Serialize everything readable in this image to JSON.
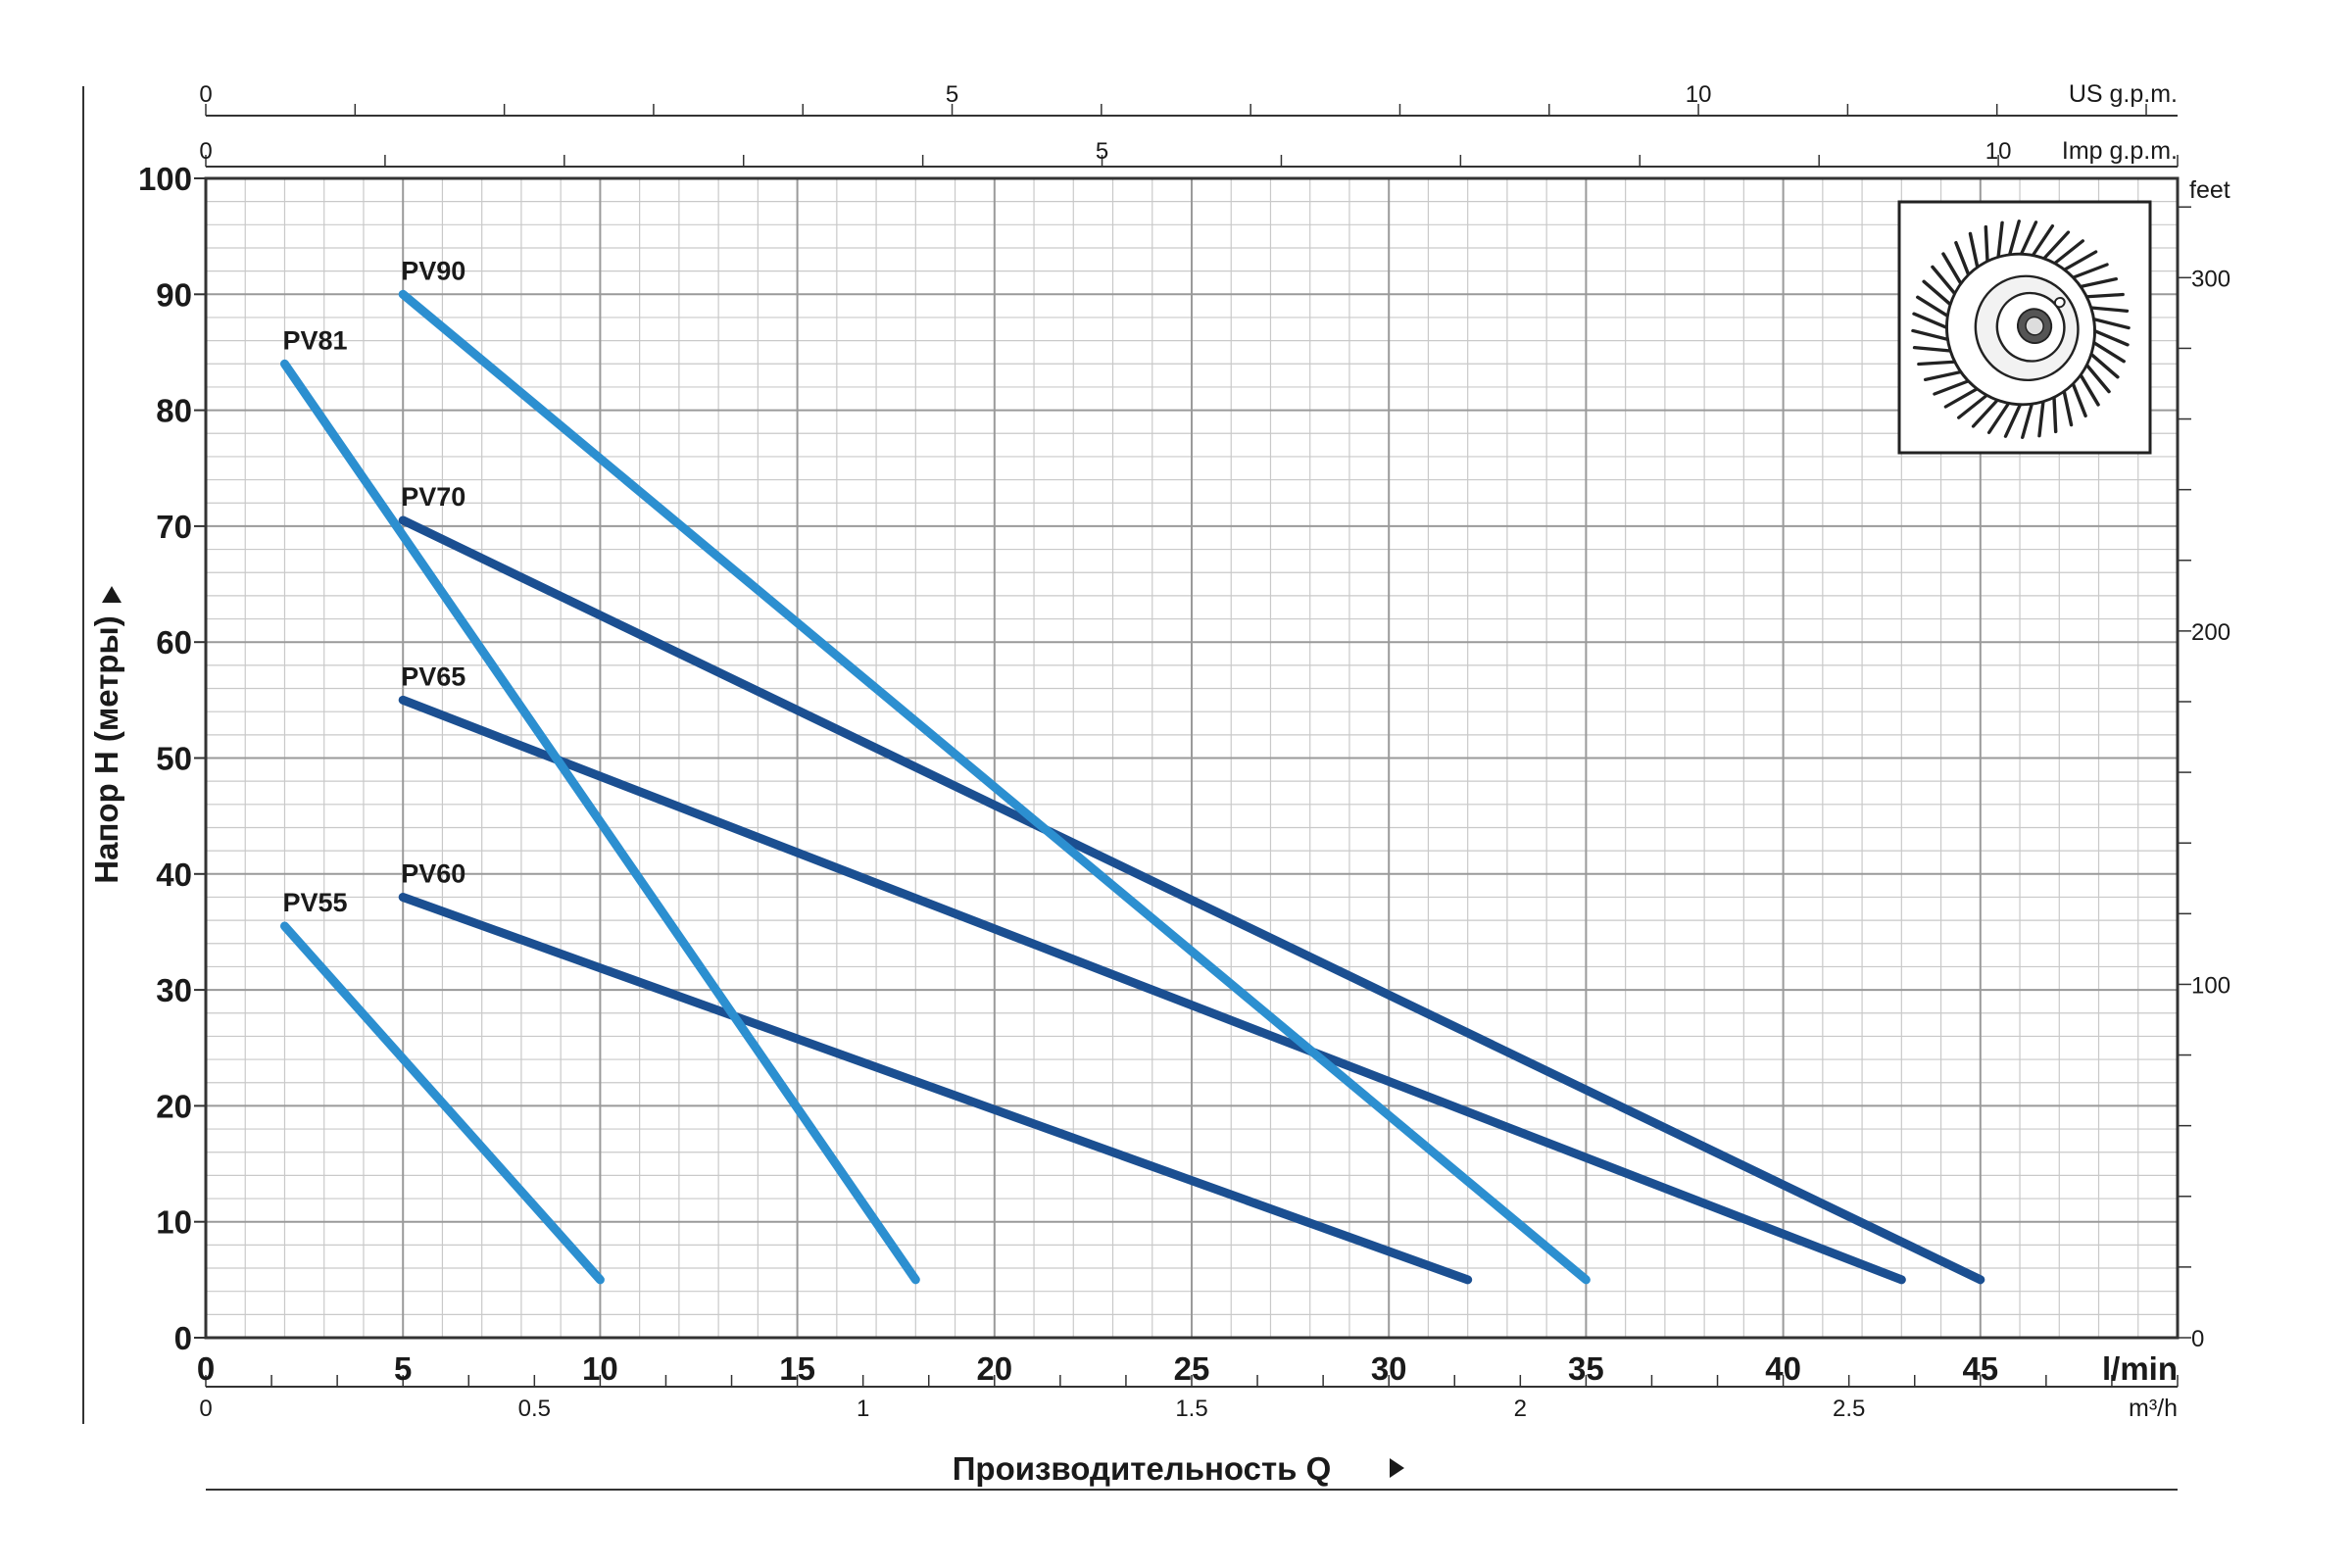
{
  "chart_data": {
    "type": "line",
    "xlabel": "Производительность Q",
    "ylabel": "Напор H (метры)",
    "x_unit": "l/min",
    "xlim": [
      0,
      50
    ],
    "x_ticks": [
      0,
      5,
      10,
      15,
      20,
      25,
      30,
      35,
      40,
      45
    ],
    "ylim": [
      0,
      100
    ],
    "y_ticks": [
      0,
      10,
      20,
      30,
      40,
      50,
      60,
      70,
      80,
      90,
      100
    ],
    "grid": true,
    "secondary_axes": {
      "us_gpm": {
        "unit": "US g.p.m.",
        "range": [
          0,
          13.21
        ],
        "labels": [
          0,
          5,
          10
        ]
      },
      "imp_gpm": {
        "unit": "Imp g.p.m.",
        "range": [
          0,
          11.0
        ],
        "labels": [
          0,
          5,
          10
        ]
      },
      "m3h": {
        "unit": "m³/h",
        "range": [
          0,
          3.0
        ],
        "labels": [
          "0",
          "0.5",
          "1",
          "1.5",
          "2",
          "2.5"
        ]
      },
      "feet": {
        "unit": "feet",
        "range": [
          0,
          328.1
        ],
        "labels": [
          0,
          100,
          200,
          300
        ]
      }
    },
    "series": [
      {
        "name": "PV55",
        "color": "#2c8fd0",
        "points": [
          [
            2,
            35.5
          ],
          [
            10,
            5
          ]
        ]
      },
      {
        "name": "PV60",
        "color": "#1b4f91",
        "points": [
          [
            5,
            38
          ],
          [
            32,
            5
          ]
        ]
      },
      {
        "name": "PV65",
        "color": "#1b4f91",
        "points": [
          [
            5,
            55
          ],
          [
            43,
            5
          ]
        ]
      },
      {
        "name": "PV70",
        "color": "#1b4f91",
        "points": [
          [
            5,
            70.5
          ],
          [
            45,
            5
          ]
        ]
      },
      {
        "name": "PV81",
        "color": "#2c8fd0",
        "points": [
          [
            2,
            84
          ],
          [
            18,
            5
          ]
        ]
      },
      {
        "name": "PV90",
        "color": "#2c8fd0",
        "points": [
          [
            5,
            90
          ],
          [
            35,
            5
          ]
        ]
      }
    ]
  },
  "inset": {
    "icon": "impeller-icon"
  }
}
